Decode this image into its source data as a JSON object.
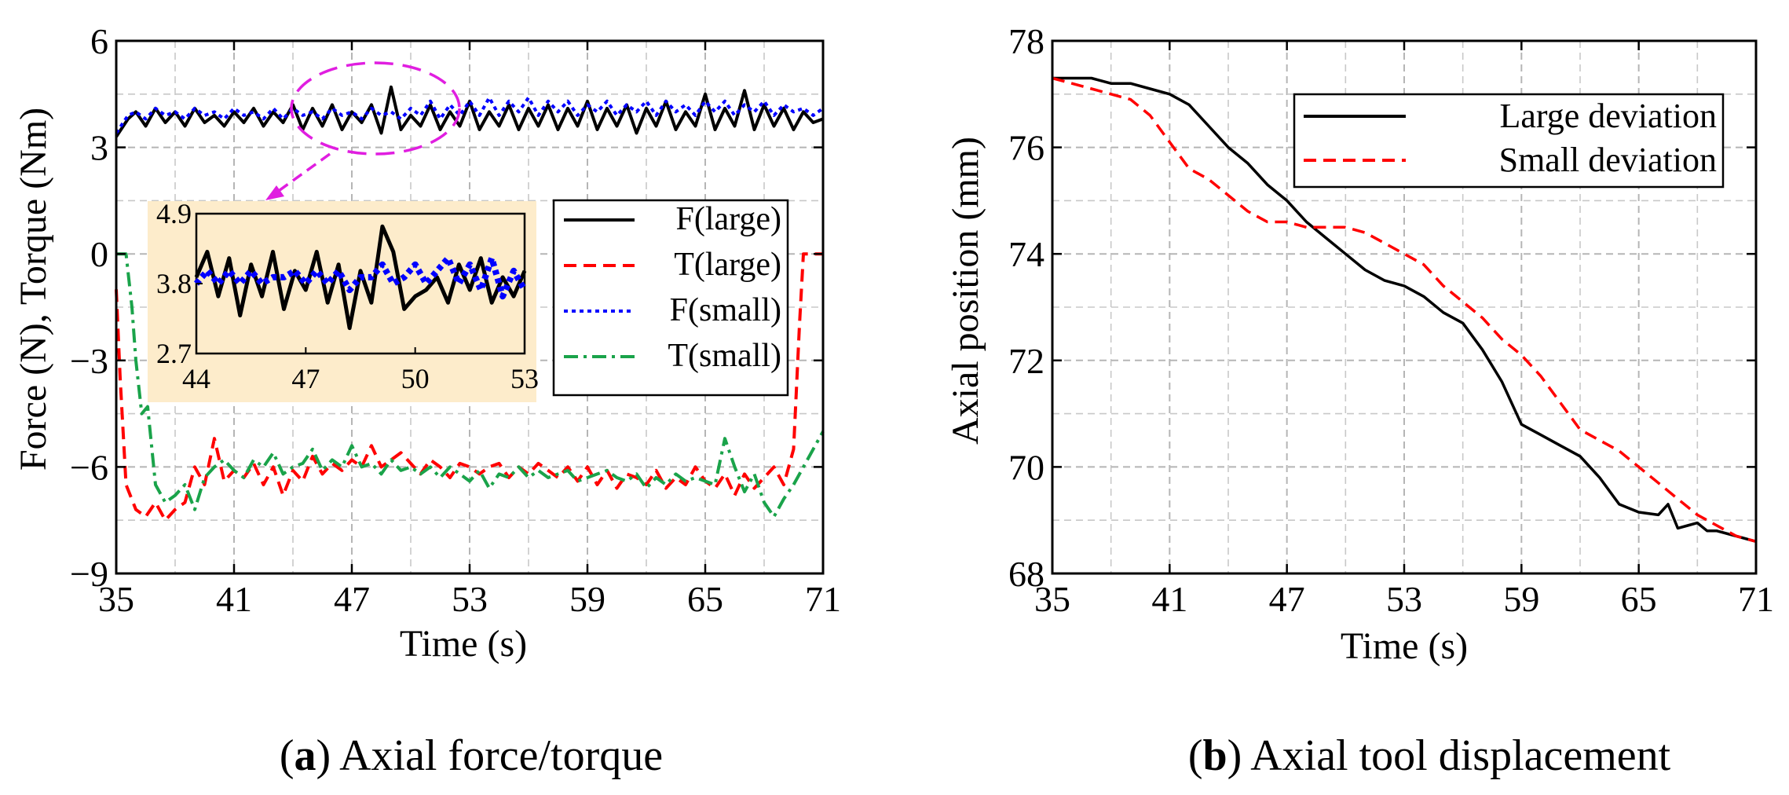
{
  "chart_data": [
    {
      "type": "line",
      "panel_label": "a",
      "caption": "Axial force/torque",
      "xlabel": "Time (s)",
      "ylabel": "Force (N), Torque (Nm)",
      "xlim": [
        35,
        71
      ],
      "ylim": [
        -9,
        6
      ],
      "xticks": [
        35,
        41,
        47,
        53,
        59,
        65,
        71
      ],
      "yticks": [
        -9,
        -6,
        -3,
        0,
        3,
        6
      ],
      "ytick_labels": [
        "−9",
        "−6",
        "−3",
        "0",
        "3",
        "6"
      ],
      "grid": true,
      "legend_position": "right",
      "series": [
        {
          "name": "F(large)",
          "color": "#000000",
          "style": "solid",
          "x": [
            35,
            35.6,
            36,
            36.5,
            37,
            37.5,
            38,
            38.5,
            39,
            39.5,
            40,
            40.5,
            41,
            41.5,
            42,
            42.5,
            43,
            43.5,
            44,
            44.5,
            45,
            45.5,
            46,
            46.5,
            47,
            47.5,
            48,
            48.5,
            49,
            49.5,
            50,
            50.5,
            51,
            51.5,
            52,
            52.5,
            53,
            53.5,
            54,
            54.5,
            55,
            55.5,
            56,
            56.5,
            57,
            57.5,
            58,
            58.5,
            59,
            59.5,
            60,
            60.5,
            61,
            61.5,
            62,
            62.5,
            63,
            63.5,
            64,
            64.5,
            65,
            65.5,
            66,
            66.5,
            67,
            67.5,
            68,
            68.5,
            69,
            69.5,
            70,
            70.5,
            71
          ],
          "y": [
            3.3,
            3.8,
            4.0,
            3.6,
            4.1,
            3.7,
            4.0,
            3.6,
            4.1,
            3.7,
            3.9,
            3.6,
            4.0,
            3.7,
            4.1,
            3.6,
            4.0,
            3.7,
            4.2,
            3.5,
            4.1,
            3.6,
            4.2,
            3.5,
            4.0,
            3.7,
            4.2,
            3.4,
            4.7,
            3.5,
            3.9,
            3.6,
            4.2,
            3.5,
            4.0,
            3.6,
            4.3,
            3.5,
            4.0,
            3.6,
            4.2,
            3.5,
            4.1,
            3.6,
            4.2,
            3.5,
            4.1,
            3.6,
            4.3,
            3.5,
            4.1,
            3.6,
            4.2,
            3.4,
            4.1,
            3.6,
            4.3,
            3.5,
            4.0,
            3.6,
            4.5,
            3.5,
            4.1,
            3.6,
            4.6,
            3.5,
            4.2,
            3.6,
            4.1,
            3.5,
            4.0,
            3.7,
            3.8
          ]
        },
        {
          "name": "T(large)",
          "color": "#ff0000",
          "style": "dashed",
          "x": [
            35,
            35.2,
            35.5,
            36,
            36.5,
            37,
            37.5,
            38,
            38.5,
            39,
            39.5,
            40,
            40.5,
            41,
            41.5,
            42,
            42.5,
            43,
            43.5,
            44,
            44.5,
            45,
            45.5,
            46,
            46.5,
            47,
            47.5,
            48,
            48.5,
            49,
            49.5,
            50,
            50.5,
            51,
            51.5,
            52,
            52.5,
            53,
            53.5,
            54,
            54.5,
            55,
            55.5,
            56,
            56.5,
            57,
            57.5,
            58,
            58.5,
            59,
            59.5,
            60,
            60.5,
            61,
            61.5,
            62,
            62.5,
            63,
            63.5,
            64,
            64.5,
            65,
            65.5,
            66,
            66.5,
            67,
            67.5,
            68,
            68.5,
            69,
            69.5,
            69.8,
            70,
            70.5,
            71
          ],
          "y": [
            -1,
            -3.5,
            -6.5,
            -7.2,
            -7.4,
            -7.0,
            -7.5,
            -7.2,
            -7.0,
            -6.0,
            -6.5,
            -5.2,
            -6.4,
            -6.1,
            -6.3,
            -5.9,
            -6.5,
            -6.0,
            -6.8,
            -6.1,
            -6.4,
            -5.7,
            -6.2,
            -5.9,
            -6.1,
            -5.8,
            -6.0,
            -5.4,
            -6.0,
            -5.8,
            -5.6,
            -5.9,
            -6.2,
            -5.8,
            -6.0,
            -6.3,
            -5.9,
            -6.0,
            -6.2,
            -6.0,
            -5.9,
            -6.3,
            -6.0,
            -6.2,
            -5.9,
            -6.1,
            -6.3,
            -6.0,
            -6.4,
            -6.0,
            -6.5,
            -6.1,
            -6.6,
            -6.2,
            -6.3,
            -6.5,
            -6.1,
            -6.6,
            -6.3,
            -6.5,
            -6.0,
            -6.4,
            -6.6,
            -6.2,
            -6.8,
            -6.2,
            -6.6,
            -6.3,
            -6.0,
            -6.5,
            -5.5,
            -2.0,
            0,
            0,
            0
          ]
        },
        {
          "name": "F(small)",
          "color": "#0000ff",
          "style": "dotted",
          "x": [
            35,
            35.6,
            36,
            36.5,
            37,
            37.5,
            38,
            38.5,
            39,
            39.5,
            40,
            40.5,
            41,
            41.5,
            42,
            42.5,
            43,
            43.5,
            44,
            44.5,
            45,
            45.5,
            46,
            46.5,
            47,
            47.5,
            48,
            48.5,
            49,
            49.5,
            50,
            50.5,
            51,
            51.5,
            52,
            52.5,
            53,
            53.5,
            54,
            54.5,
            55,
            55.5,
            56,
            56.5,
            57,
            57.5,
            58,
            58.5,
            59,
            59.5,
            60,
            60.5,
            61,
            61.5,
            62,
            62.5,
            63,
            63.5,
            64,
            64.5,
            65,
            65.5,
            66,
            66.5,
            67,
            67.5,
            68,
            68.5,
            69,
            69.5,
            70,
            70.5,
            71
          ],
          "y": [
            3.4,
            3.9,
            4.0,
            3.8,
            4.1,
            3.9,
            4.0,
            3.8,
            4.1,
            3.9,
            4.0,
            3.8,
            4.1,
            3.9,
            4.0,
            3.8,
            4.1,
            3.8,
            4.1,
            3.9,
            4.0,
            3.8,
            4.1,
            3.9,
            4.0,
            3.8,
            4.1,
            3.9,
            4.0,
            3.8,
            4.1,
            3.9,
            4.3,
            3.8,
            4.2,
            3.9,
            4.3,
            3.9,
            4.4,
            3.9,
            4.3,
            4.0,
            4.4,
            3.9,
            4.3,
            4.0,
            4.3,
            3.9,
            4.2,
            4.0,
            4.3,
            3.9,
            4.2,
            4.0,
            4.3,
            3.9,
            4.3,
            4.0,
            4.2,
            3.9,
            4.3,
            4.0,
            4.3,
            3.9,
            4.2,
            4.0,
            4.3,
            3.9,
            4.2,
            4.0,
            4.1,
            3.9,
            4.1
          ]
        },
        {
          "name": "T(small)",
          "color": "#1aa34a",
          "style": "dashdot",
          "x": [
            35,
            35.5,
            35.8,
            36,
            36.3,
            36.6,
            37,
            37.5,
            38,
            38.5,
            39,
            39.5,
            40,
            40.5,
            41,
            41.5,
            42,
            42.5,
            43,
            43.5,
            44,
            44.5,
            45,
            45.5,
            46,
            46.5,
            47,
            47.5,
            48,
            48.5,
            49,
            49.5,
            50,
            50.5,
            51,
            51.5,
            52,
            52.5,
            53,
            53.5,
            54,
            54.5,
            55,
            55.5,
            56,
            56.5,
            57,
            57.5,
            58,
            58.5,
            59,
            59.5,
            60,
            60.5,
            61,
            61.5,
            62,
            62.5,
            63,
            63.5,
            64,
            64.5,
            65,
            65.5,
            66,
            66.5,
            67,
            67.5,
            68,
            68.5,
            69,
            69.5,
            70,
            70.5,
            71
          ],
          "y": [
            0,
            0,
            -1.5,
            -3.0,
            -4.5,
            -4.3,
            -6.5,
            -7.0,
            -6.8,
            -6.5,
            -7.2,
            -6.3,
            -6.0,
            -5.8,
            -6.1,
            -6.3,
            -5.8,
            -6.0,
            -5.6,
            -6.2,
            -6.0,
            -5.9,
            -5.5,
            -6.1,
            -5.8,
            -6.0,
            -5.4,
            -6.0,
            -5.9,
            -6.2,
            -5.8,
            -6.1,
            -6.0,
            -6.2,
            -6.0,
            -6.3,
            -6.0,
            -6.2,
            -6.4,
            -6.1,
            -6.6,
            -6.2,
            -6.3,
            -6.0,
            -6.3,
            -6.1,
            -6.3,
            -6.2,
            -6.1,
            -6.4,
            -6.3,
            -6.2,
            -6.1,
            -6.3,
            -6.4,
            -6.2,
            -6.6,
            -6.3,
            -6.5,
            -6.2,
            -6.4,
            -6.3,
            -6.4,
            -6.5,
            -5.2,
            -6.0,
            -6.7,
            -6.2,
            -7.0,
            -7.4,
            -6.9,
            -6.5,
            -6.0,
            -5.5,
            -5.0
          ]
        }
      ],
      "inset": {
        "xlim": [
          44,
          53
        ],
        "ylim": [
          2.7,
          4.9
        ],
        "xticks": [
          44,
          47,
          50,
          53
        ],
        "yticks": [
          2.7,
          3.8,
          4.9
        ],
        "series": [
          {
            "name": "F(large)",
            "color": "#000000",
            "style": "solid",
            "x": [
              44,
              44.3,
              44.6,
              44.9,
              45.2,
              45.5,
              45.8,
              46.1,
              46.4,
              46.7,
              47,
              47.3,
              47.6,
              47.9,
              48.2,
              48.5,
              48.8,
              49.1,
              49.4,
              49.7,
              50,
              50.3,
              50.6,
              50.9,
              51.2,
              51.5,
              51.8,
              52.1,
              52.4,
              52.7,
              53
            ],
            "y": [
              3.9,
              4.3,
              3.6,
              4.2,
              3.3,
              4.1,
              3.6,
              4.3,
              3.4,
              4.0,
              3.7,
              4.3,
              3.5,
              4.1,
              3.1,
              4.0,
              3.5,
              4.7,
              4.3,
              3.4,
              3.6,
              3.7,
              3.9,
              3.5,
              4.1,
              3.7,
              4.2,
              3.5,
              3.9,
              3.6,
              4.0
            ]
          },
          {
            "name": "F(small)",
            "color": "#0000ff",
            "style": "dotted",
            "x": [
              44,
              44.3,
              44.6,
              44.9,
              45.2,
              45.5,
              45.8,
              46.1,
              46.4,
              46.7,
              47,
              47.3,
              47.6,
              47.9,
              48.2,
              48.5,
              48.8,
              49.1,
              49.4,
              49.7,
              50,
              50.3,
              50.6,
              50.9,
              51.2,
              51.5,
              51.8,
              52.1,
              52.4,
              52.7,
              53
            ],
            "y": [
              3.8,
              4.0,
              3.8,
              4.0,
              3.8,
              4.0,
              3.8,
              3.9,
              3.9,
              4.0,
              3.8,
              4.0,
              3.8,
              4.0,
              3.7,
              3.9,
              3.9,
              4.1,
              3.8,
              3.9,
              4.1,
              3.8,
              4.0,
              4.2,
              3.8,
              4.1,
              3.7,
              4.2,
              3.6,
              4.0,
              3.7
            ]
          }
        ]
      }
    },
    {
      "type": "line",
      "panel_label": "b",
      "caption": "Axial tool displacement",
      "xlabel": "Time (s)",
      "ylabel": "Axial position (mm)",
      "xlim": [
        35,
        71
      ],
      "ylim": [
        68,
        78
      ],
      "xticks": [
        35,
        41,
        47,
        53,
        59,
        65,
        71
      ],
      "yticks": [
        68,
        70,
        72,
        74,
        76,
        78
      ],
      "grid": true,
      "legend_position": "top-right",
      "series": [
        {
          "name": "Large deviation",
          "color": "#000000",
          "style": "solid",
          "x": [
            35,
            36,
            37,
            38,
            39,
            40,
            41,
            42,
            43,
            44,
            45,
            46,
            47,
            48,
            49,
            50,
            51,
            52,
            53,
            54,
            55,
            56,
            57,
            58,
            59,
            60,
            61,
            62,
            63,
            64,
            65,
            66,
            66.5,
            67,
            67.5,
            68,
            68.5,
            69,
            70,
            71
          ],
          "y": [
            77.3,
            77.3,
            77.3,
            77.2,
            77.2,
            77.1,
            77.0,
            76.8,
            76.4,
            76.0,
            75.7,
            75.3,
            75.0,
            74.6,
            74.3,
            74.0,
            73.7,
            73.5,
            73.4,
            73.2,
            72.9,
            72.7,
            72.2,
            71.6,
            70.8,
            70.6,
            70.4,
            70.2,
            69.8,
            69.3,
            69.15,
            69.1,
            69.3,
            68.85,
            68.9,
            68.95,
            68.8,
            68.8,
            68.7,
            68.6
          ]
        },
        {
          "name": "Small deviation",
          "color": "#ff0000",
          "style": "dashed",
          "x": [
            35,
            36,
            37,
            38,
            39,
            40,
            41,
            42,
            43,
            44,
            45,
            46,
            47,
            48,
            49,
            50,
            51,
            52,
            53,
            54,
            55,
            56,
            57,
            58,
            59,
            60,
            61,
            62,
            63,
            64,
            65,
            66,
            67,
            68,
            69,
            70,
            71
          ],
          "y": [
            77.3,
            77.2,
            77.1,
            77.0,
            76.9,
            76.6,
            76.1,
            75.6,
            75.4,
            75.1,
            74.8,
            74.6,
            74.6,
            74.5,
            74.5,
            74.5,
            74.4,
            74.2,
            74.0,
            73.8,
            73.4,
            73.1,
            72.8,
            72.4,
            72.1,
            71.7,
            71.2,
            70.7,
            70.5,
            70.3,
            70.0,
            69.7,
            69.4,
            69.1,
            68.9,
            68.7,
            68.6
          ]
        }
      ]
    }
  ]
}
